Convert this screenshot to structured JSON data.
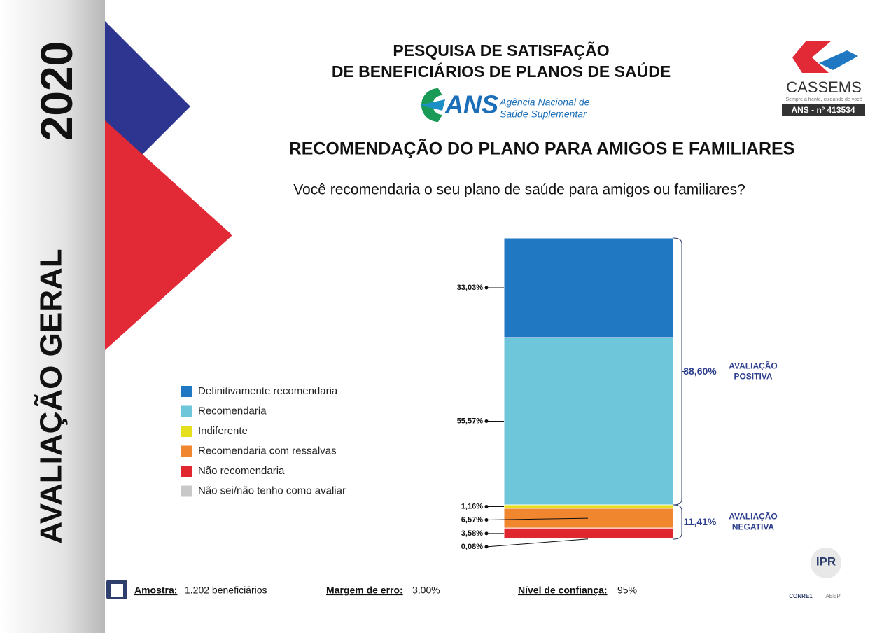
{
  "sidebar": {
    "year": "2020",
    "label": "AVALIAÇÃO GERAL"
  },
  "header": {
    "title_line1": "PESQUISA DE SATISFAÇÃO",
    "title_line2": "DE BENEFICIÁRIOS DE PLANOS DE SAÚDE",
    "ans_logo": "ANS",
    "ans_name1": "Agência Nacional de",
    "ans_name2": "Saúde Suplementar",
    "brand": "CASSEMS",
    "brand_tagline": "Sempre à frente, cuidando de você",
    "brand_registry": "ANS - nº 413534"
  },
  "chart_data": {
    "type": "stacked-bar",
    "title": "RECOMENDAÇÃO DO PLANO PARA AMIGOS E FAMILIARES",
    "subtitle": "Você recomendaria o seu plano de saúde para amigos ou familiares?",
    "series": [
      {
        "name": "Definitivamente recomendaria",
        "color": "#1f78c1",
        "values": [
          33.03
        ],
        "value_labels": [
          "33,03%"
        ]
      },
      {
        "name": "Recomendaria",
        "color": "#6dc6d9",
        "values": [
          55.57
        ],
        "value_labels": [
          "55,57%"
        ]
      },
      {
        "name": "Indiferente",
        "color": "#e6df1c",
        "values": [
          1.16
        ],
        "value_labels": [
          "1,16%"
        ]
      },
      {
        "name": "Recomendaria com ressalvas",
        "color": "#f0862e",
        "values": [
          6.57
        ],
        "value_labels": [
          "6,57%"
        ]
      },
      {
        "name": "Não recomendaria",
        "color": "#e0262e",
        "values": [
          3.58
        ],
        "value_labels": [
          "3,58%"
        ]
      },
      {
        "name": "Não sei/não tenho como avaliar",
        "color": "#c8c8c8",
        "values": [
          0.08
        ],
        "value_labels": [
          "0,08%"
        ]
      }
    ],
    "groups": [
      {
        "label": "AVALIAÇÃO POSITIVA",
        "value": 88.6,
        "value_label": "88,60%"
      },
      {
        "label": "AVALIAÇÃO NEGATIVA",
        "value": 11.41,
        "value_label": "11,41%"
      }
    ]
  },
  "footer": {
    "sample_label": "Amostra:",
    "sample_value": "1.202 beneficiários",
    "margin_label": "Margem de erro:",
    "margin_value": "3,00%",
    "confidence_label": "Nível de confiança:",
    "confidence_value": "95%",
    "ipr": "IPR",
    "conre": "CONRE1",
    "abep": "ABEP"
  }
}
